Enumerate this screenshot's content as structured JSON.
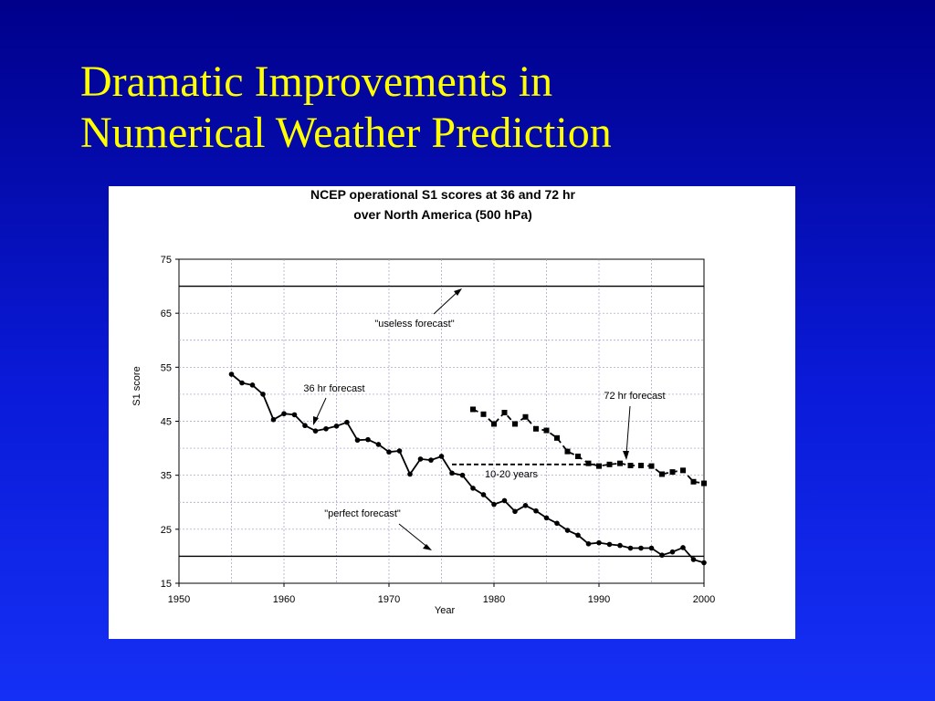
{
  "slide": {
    "title_line1": "Dramatic Improvements in",
    "title_line2": "Numerical Weather Prediction"
  },
  "chart_data": {
    "type": "line",
    "title_line1": "NCEP operational S1 scores at 36 and 72 hr",
    "title_line2": "over North America (500 hPa)",
    "xlabel": "Year",
    "ylabel": "S1 score",
    "xlim": [
      1950,
      2000
    ],
    "ylim": [
      15,
      75
    ],
    "xticks": [
      1950,
      1960,
      1970,
      1980,
      1990,
      2000
    ],
    "yticks": [
      15,
      25,
      35,
      45,
      55,
      65,
      75
    ],
    "grid": true,
    "series": [
      {
        "name": "36 hr forecast",
        "marker": "circle",
        "line": "solid",
        "x": [
          1955,
          1956,
          1957,
          1958,
          1959,
          1960,
          1961,
          1962,
          1963,
          1964,
          1965,
          1966,
          1967,
          1968,
          1969,
          1970,
          1971,
          1972,
          1973,
          1974,
          1975,
          1976,
          1977,
          1978,
          1979,
          1980,
          1981,
          1982,
          1983,
          1984,
          1985,
          1986,
          1987,
          1988,
          1989,
          1990,
          1991,
          1992,
          1993,
          1994,
          1995,
          1996,
          1997,
          1998,
          1999,
          2000
        ],
        "y": [
          53.7,
          52.1,
          51.7,
          50.0,
          45.3,
          46.4,
          46.2,
          44.2,
          43.2,
          43.6,
          44.1,
          44.8,
          41.5,
          41.6,
          40.7,
          39.3,
          39.5,
          35.2,
          38.0,
          37.8,
          38.5,
          35.4,
          35.0,
          32.6,
          31.4,
          29.6,
          30.3,
          28.3,
          29.4,
          28.4,
          27.1,
          26.1,
          24.8,
          23.9,
          22.3,
          22.5,
          22.2,
          22.0,
          21.5,
          21.5,
          21.5,
          20.2,
          20.8,
          21.6,
          19.4,
          18.8
        ]
      },
      {
        "name": "72 hr forecast",
        "marker": "square",
        "line": "dashed",
        "x": [
          1978,
          1979,
          1980,
          1981,
          1982,
          1983,
          1984,
          1985,
          1986,
          1987,
          1988,
          1989,
          1990,
          1991,
          1992,
          1993,
          1994,
          1995,
          1996,
          1997,
          1998,
          1999,
          2000
        ],
        "y": [
          47.2,
          46.3,
          44.5,
          46.6,
          44.5,
          45.8,
          43.6,
          43.3,
          41.9,
          39.4,
          38.5,
          37.2,
          36.7,
          37.0,
          37.2,
          36.8,
          36.8,
          36.7,
          35.2,
          35.6,
          35.9,
          33.8,
          33.5
        ]
      }
    ],
    "reference_lines": [
      {
        "name": "useless",
        "y": 70
      },
      {
        "name": "perfect",
        "y": 20
      }
    ],
    "gap_line": {
      "x_start": 1976,
      "x_end": 1990,
      "y": 37
    },
    "annotations": {
      "useless": "\"useless forecast\"",
      "perfect": "\"perfect forecast\"",
      "s36": "36 hr forecast",
      "s72": "72 hr forecast",
      "gap": "10-20 years"
    }
  }
}
